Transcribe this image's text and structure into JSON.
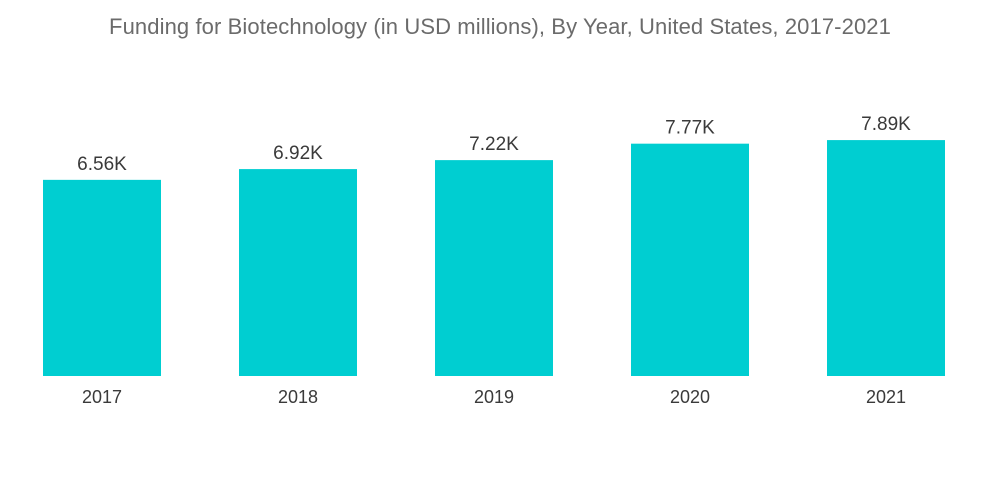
{
  "chart_data": {
    "type": "bar",
    "title": "Funding for Biotechnology (in USD millions), By Year, United States, 2017-2021",
    "categories": [
      "2017",
      "2018",
      "2019",
      "2020",
      "2021"
    ],
    "values": [
      6560,
      6920,
      7220,
      7770,
      7890
    ],
    "data_labels": [
      "6.56K",
      "6.92K",
      "7.22K",
      "7.77K",
      "7.89K"
    ],
    "xlabel": "",
    "ylabel": "",
    "ylim": [
      0,
      10000
    ],
    "grid": false,
    "legend": "none",
    "bar_color": "#00ced1"
  }
}
